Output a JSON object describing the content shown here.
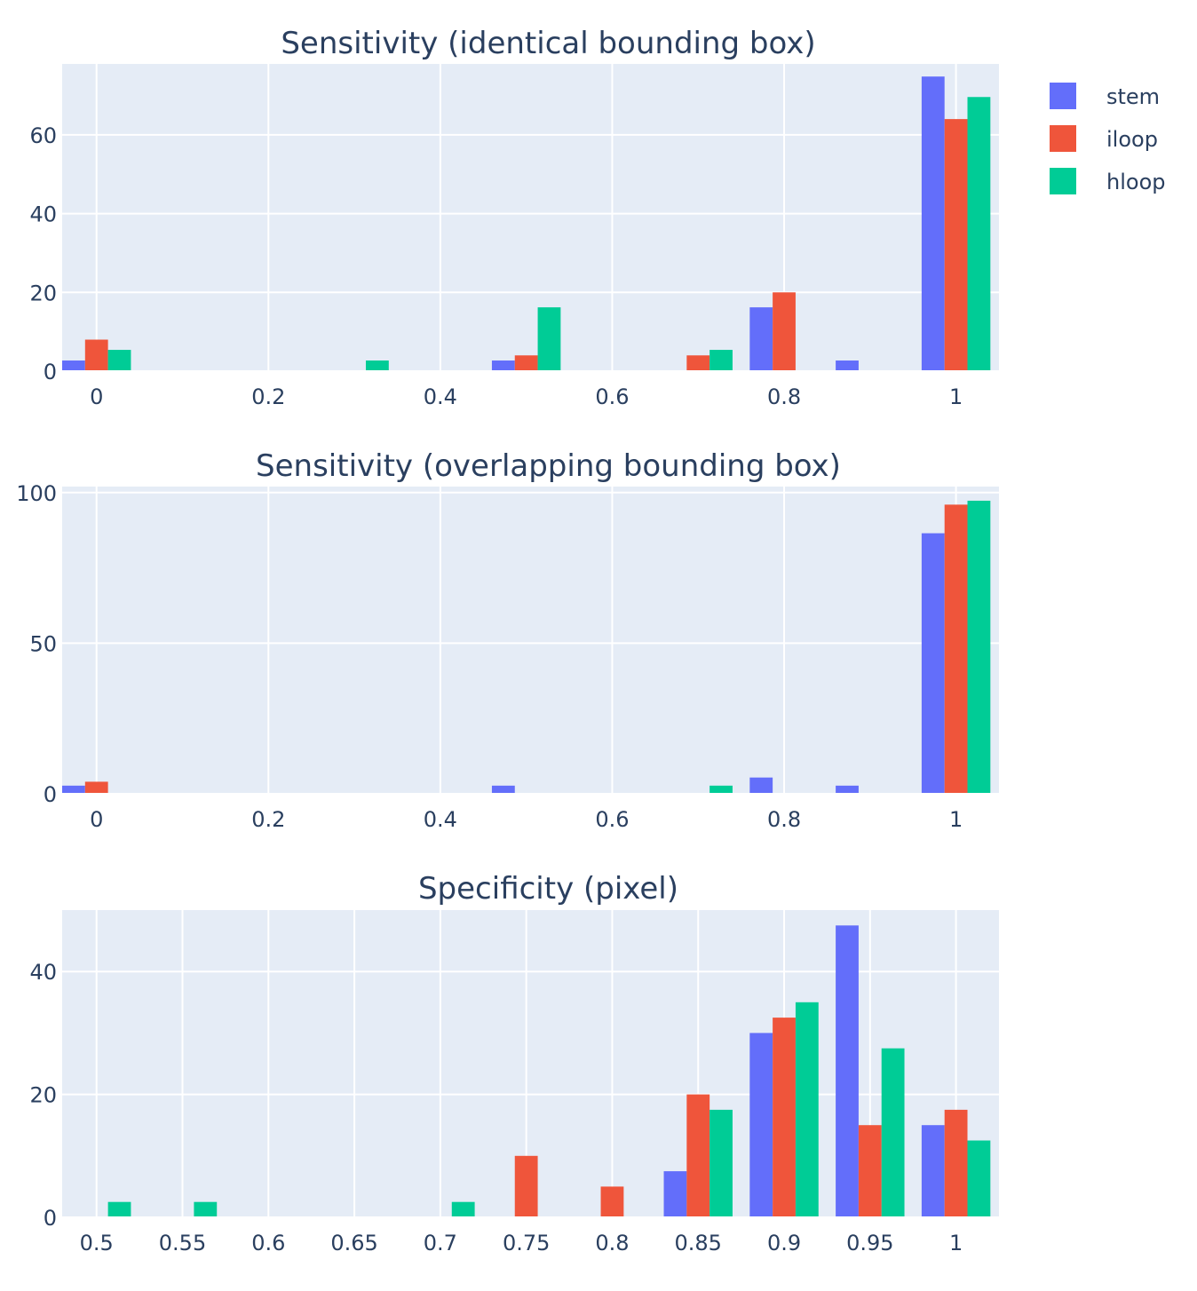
{
  "chart_data": [
    {
      "type": "bar",
      "title": "Sensitivity (identical bounding box)",
      "xlabel": "",
      "ylabel": "",
      "x": [
        0,
        0.1,
        0.2,
        0.3,
        0.4,
        0.5,
        0.6,
        0.7,
        0.8,
        0.9,
        1.0
      ],
      "x_ticks": [
        0,
        0.2,
        0.4,
        0.6,
        0.8,
        1
      ],
      "x_tick_labels": [
        "0",
        "0.2",
        "0.4",
        "0.6",
        "0.8",
        "1"
      ],
      "xlim": [
        -0.04,
        1.05
      ],
      "ylim": [
        0,
        78
      ],
      "y_ticks": [
        0,
        20,
        40,
        60
      ],
      "y_tick_labels": [
        "0",
        "20",
        "40",
        "60"
      ],
      "grid": true,
      "series": [
        {
          "name": "stem",
          "color": "#636efa",
          "values": [
            2.7,
            0,
            0,
            0,
            0,
            2.7,
            0,
            0,
            16.2,
            2.7,
            74.8
          ]
        },
        {
          "name": "iloop",
          "color": "#ef553b",
          "values": [
            8,
            0,
            0,
            0,
            0,
            4,
            0,
            4,
            20,
            0,
            64
          ]
        },
        {
          "name": "hloop",
          "color": "#00cc96",
          "values": [
            5.4,
            0,
            0,
            2.7,
            0,
            16.2,
            0,
            5.4,
            0,
            0,
            69.6
          ]
        }
      ]
    },
    {
      "type": "bar",
      "title": "Sensitivity (overlapping bounding box)",
      "xlabel": "",
      "ylabel": "",
      "x": [
        0,
        0.1,
        0.2,
        0.3,
        0.4,
        0.5,
        0.6,
        0.7,
        0.8,
        0.9,
        1.0
      ],
      "x_ticks": [
        0,
        0.2,
        0.4,
        0.6,
        0.8,
        1
      ],
      "x_tick_labels": [
        "0",
        "0.2",
        "0.4",
        "0.6",
        "0.8",
        "1"
      ],
      "xlim": [
        -0.04,
        1.05
      ],
      "ylim": [
        0,
        102
      ],
      "y_ticks": [
        0,
        50,
        100
      ],
      "y_tick_labels": [
        "0",
        "50",
        "100"
      ],
      "grid": true,
      "series": [
        {
          "name": "stem",
          "color": "#636efa",
          "values": [
            2.7,
            0,
            0,
            0,
            0,
            2.7,
            0,
            0,
            5.4,
            2.7,
            86.5
          ]
        },
        {
          "name": "iloop",
          "color": "#ef553b",
          "values": [
            4,
            0,
            0,
            0,
            0,
            0,
            0,
            0,
            0,
            0,
            96
          ]
        },
        {
          "name": "hloop",
          "color": "#00cc96",
          "values": [
            0,
            0,
            0,
            0,
            0,
            0,
            0,
            2.7,
            0,
            0,
            97.3
          ]
        }
      ]
    },
    {
      "type": "bar",
      "title": "Specificity (pixel)",
      "xlabel": "",
      "ylabel": "",
      "x": [
        0.5,
        0.55,
        0.6,
        0.65,
        0.7,
        0.75,
        0.8,
        0.85,
        0.9,
        0.95,
        1.0
      ],
      "x_ticks": [
        0.5,
        0.55,
        0.6,
        0.65,
        0.7,
        0.75,
        0.8,
        0.85,
        0.9,
        0.95,
        1
      ],
      "x_tick_labels": [
        "0.5",
        "0.55",
        "0.6",
        "0.65",
        "0.7",
        "0.75",
        "0.8",
        "0.85",
        "0.9",
        "0.95",
        "1"
      ],
      "xlim": [
        0.48,
        1.025
      ],
      "ylim": [
        0,
        50
      ],
      "y_ticks": [
        0,
        20,
        40
      ],
      "y_tick_labels": [
        "0",
        "20",
        "40"
      ],
      "grid": true,
      "series": [
        {
          "name": "stem",
          "color": "#636efa",
          "values": [
            0,
            0,
            0,
            0,
            0,
            0,
            0,
            7.5,
            30,
            47.5,
            15
          ]
        },
        {
          "name": "iloop",
          "color": "#ef553b",
          "values": [
            0,
            0,
            0,
            0,
            0,
            10,
            5,
            20,
            32.5,
            15,
            17.5
          ]
        },
        {
          "name": "hloop",
          "color": "#00cc96",
          "values": [
            2.5,
            2.5,
            0,
            0,
            2.5,
            0,
            0,
            17.5,
            35,
            27.5,
            12.5
          ]
        }
      ]
    }
  ],
  "legend": {
    "position": "top-right",
    "items": [
      {
        "label": "stem",
        "color": "#636efa"
      },
      {
        "label": "iloop",
        "color": "#ef553b"
      },
      {
        "label": "hloop",
        "color": "#00cc96"
      }
    ]
  }
}
